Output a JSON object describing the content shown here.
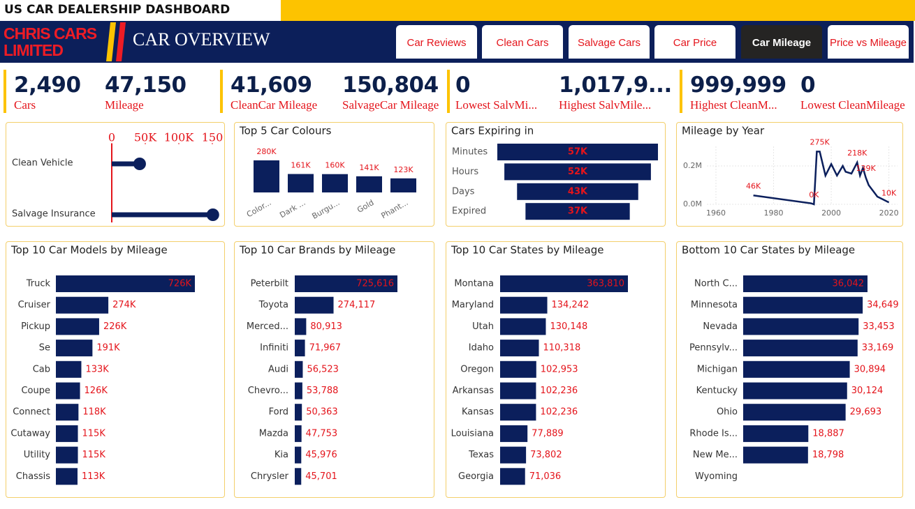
{
  "header": {
    "title": "US CAR DEALERSHIP DASHBOARD",
    "brand": "CHRIS CARS LIMITED",
    "page_title": "CAR OVERVIEW"
  },
  "tabs": [
    "Car Reviews",
    "Clean Cars",
    "Salvage Cars",
    "Car Price",
    "Car Mileage",
    "Price vs Mileage"
  ],
  "active_tab": 4,
  "kpis": [
    {
      "value": "2,490",
      "label": "Cars"
    },
    {
      "value": "47,150",
      "label": "Mileage"
    },
    {
      "value": "41,609",
      "label": "CleanCar Mileage"
    },
    {
      "value": "150,804",
      "label": "SalvageCar Mileage"
    },
    {
      "value": "0",
      "label": "Lowest SalvMi..."
    },
    {
      "value": "1,017,9...",
      "label": "Highest SalvMile..."
    },
    {
      "value": "999,999",
      "label": "Highest CleanM..."
    },
    {
      "value": "0",
      "label": "Lowest CleanMileage"
    }
  ],
  "chart_data": [
    {
      "type": "lollipop",
      "categories": [
        "Clean Vehicle",
        "Salvage Insurance"
      ],
      "values": [
        41609,
        150804
      ],
      "color": "#0b1f5c",
      "xlim": [
        0,
        160000
      ],
      "xticks": [
        0,
        {
          "value": 50000,
          "label": "50K"
        },
        {
          "value": 100000,
          "label": "100K"
        },
        {
          "value": 150000,
          "label": "150"
        }
      ]
    },
    {
      "type": "bar",
      "title": "Top 5 Car Colours",
      "categories": [
        "Color...",
        "Dark ...",
        "Burgu...",
        "Gold",
        "Phant..."
      ],
      "values": [
        280000,
        161000,
        160000,
        141000,
        123000
      ],
      "value_labels": [
        "280K",
        "161K",
        "160K",
        "141K",
        "123K"
      ],
      "color": "#0b1f5c"
    },
    {
      "type": "funnel",
      "title": "Cars Expiring in",
      "categories": [
        "Minutes",
        "Hours",
        "Days",
        "Expired"
      ],
      "values": [
        57000,
        52000,
        43000,
        37000
      ],
      "value_labels": [
        "57K",
        "52K",
        "43K",
        "37K"
      ],
      "color": "#0b1f5c"
    },
    {
      "type": "line",
      "title": "Mileage by Year",
      "x": [
        1973,
        1993,
        1994,
        1995,
        1996,
        1998,
        2000,
        2002,
        2004,
        2005,
        2007,
        2009,
        2010,
        2011,
        2012,
        2013,
        2015,
        2016,
        2018,
        2020
      ],
      "values": [
        46000,
        5000,
        0,
        275000,
        275000,
        150000,
        210000,
        150000,
        200000,
        170000,
        160000,
        218000,
        150000,
        190000,
        139000,
        100000,
        60000,
        40000,
        25000,
        10000
      ],
      "value_labels": [
        "46K",
        null,
        "0K",
        null,
        "275K",
        null,
        null,
        null,
        null,
        null,
        null,
        "218K",
        null,
        null,
        "139K",
        null,
        null,
        null,
        null,
        "10K"
      ],
      "color": "#0b1f5c",
      "xlim": [
        1957,
        2023
      ],
      "xticks": [
        1960,
        1980,
        2000,
        2020
      ],
      "ylim": [
        0,
        300000
      ],
      "yticks": [
        {
          "value": 0,
          "label": "0.0M"
        },
        {
          "value": 200000,
          "label": "0.2M"
        }
      ],
      "grid": true
    },
    {
      "type": "bar",
      "orientation": "horizontal",
      "title": "Top 10 Car Models by Mileage",
      "categories": [
        "Truck",
        "Cruiser",
        "Pickup",
        "Se",
        "Cab",
        "Coupe",
        "Connect",
        "Cutaway",
        "Utility",
        "Chassis"
      ],
      "values": [
        726000,
        274000,
        226000,
        191000,
        133000,
        126000,
        118000,
        115000,
        115000,
        113000
      ],
      "value_labels": [
        "726K",
        "274K",
        "226K",
        "191K",
        "133K",
        "126K",
        "118K",
        "115K",
        "115K",
        "113K"
      ],
      "color": "#0b1f5c"
    },
    {
      "type": "bar",
      "orientation": "horizontal",
      "title": "Top 10 Car Brands by Mileage",
      "categories": [
        "Peterbilt",
        "Toyota",
        "Merced...",
        "Infiniti",
        "Audi",
        "Chevro...",
        "Ford",
        "Mazda",
        "Kia",
        "Chrysler"
      ],
      "values": [
        725616,
        274117,
        80913,
        71967,
        56523,
        53788,
        50363,
        47753,
        45976,
        45701
      ],
      "value_labels": [
        "725,616",
        "274,117",
        "80,913",
        "71,967",
        "56,523",
        "53,788",
        "50,363",
        "47,753",
        "45,976",
        "45,701"
      ],
      "color": "#0b1f5c"
    },
    {
      "type": "bar",
      "orientation": "horizontal",
      "title": "Top 10 Car States by Mileage",
      "categories": [
        "Montana",
        "Maryland",
        "Utah",
        "Idaho",
        "Oregon",
        "Arkansas",
        "Kansas",
        "Louisiana",
        "Texas",
        "Georgia"
      ],
      "values": [
        363810,
        134242,
        130148,
        110318,
        102953,
        102236,
        102236,
        77889,
        73802,
        71036
      ],
      "value_labels": [
        "363,810",
        "134,242",
        "130,148",
        "110,318",
        "102,953",
        "102,236",
        "102,236",
        "77,889",
        "73,802",
        "71,036"
      ],
      "color": "#0b1f5c"
    },
    {
      "type": "bar",
      "orientation": "horizontal",
      "title": "Bottom 10 Car States by Mileage",
      "categories": [
        "North C...",
        "Minnesota",
        "Nevada",
        "Pennsylv...",
        "Michigan",
        "Kentucky",
        "Ohio",
        "Rhode Is...",
        "New Me...",
        "Wyoming"
      ],
      "values": [
        36042,
        34649,
        33453,
        33169,
        30894,
        30124,
        29693,
        18887,
        18798,
        0
      ],
      "value_labels": [
        "36,042",
        "34,649",
        "33,453",
        "33,169",
        "30,894",
        "30,124",
        "29,693",
        "18,887",
        "18,798",
        null
      ],
      "color": "#0b1f5c"
    }
  ]
}
